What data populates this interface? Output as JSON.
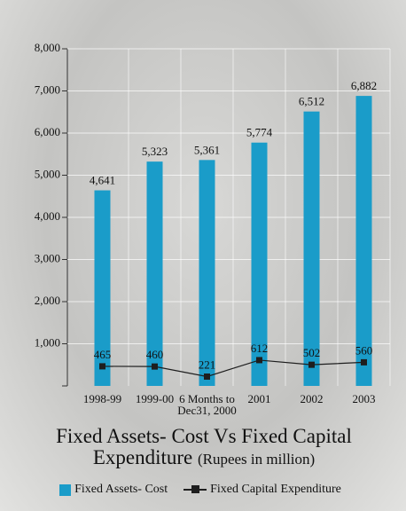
{
  "chart_data": {
    "type": "bar",
    "title": "Fixed Assets- Cost Vs Fixed Capital Expenditure",
    "subtitle": "(Rupees in million)",
    "categories": [
      "1998-99",
      "1999-00",
      "6 Months to Dec31, 2000",
      "2001",
      "2002",
      "2003"
    ],
    "series": [
      {
        "name": "Fixed Assets- Cost",
        "type": "bar",
        "color": "#1a9cc9",
        "values": [
          4641,
          5323,
          5361,
          5774,
          6512,
          6882
        ],
        "value_labels": [
          "4,641",
          "5,323",
          "5,361",
          "5,774",
          "6,512",
          "6,882"
        ]
      },
      {
        "name": "Fixed Capital Expenditure",
        "type": "line",
        "color": "#1e1e1e",
        "values": [
          465,
          460,
          221,
          612,
          502,
          560
        ]
      }
    ],
    "ylim": [
      0,
      8000
    ],
    "yticks": [
      {
        "value": 1000,
        "label": "1,000"
      },
      {
        "value": 2000,
        "label": "2,000"
      },
      {
        "value": 3000,
        "label": "3,000"
      },
      {
        "value": 4000,
        "label": "4,000"
      },
      {
        "value": 5000,
        "label": "5,000"
      },
      {
        "value": 6000,
        "label": "6,000"
      },
      {
        "value": 7000,
        "label": "7,000"
      },
      {
        "value": 8000,
        "label": "8,000"
      }
    ],
    "grid": true
  }
}
